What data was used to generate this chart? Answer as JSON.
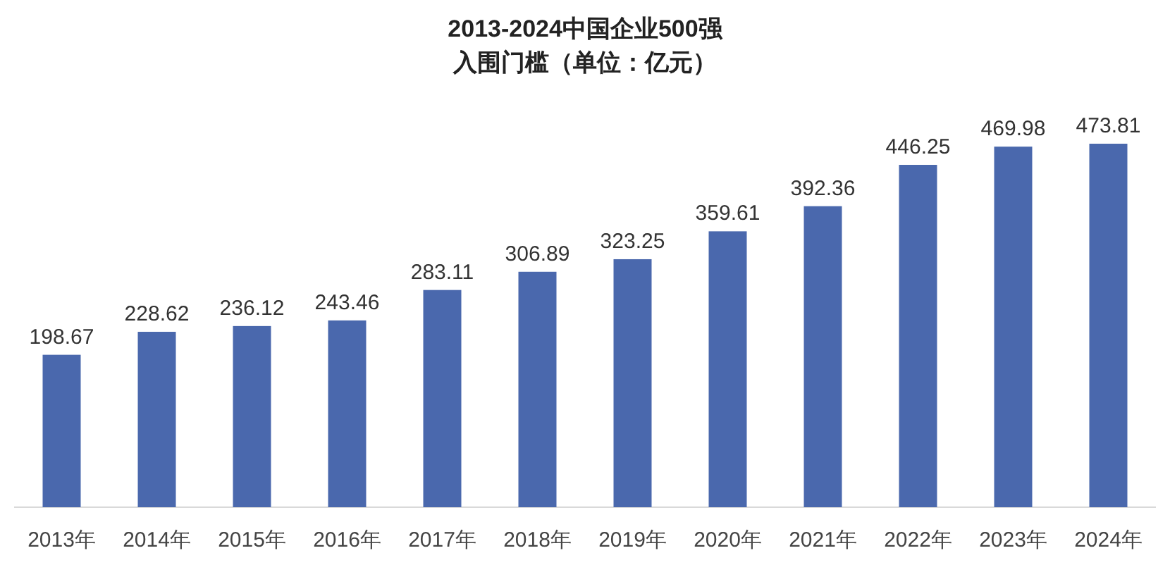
{
  "chart_data": {
    "type": "bar",
    "title": "2013-2024中国企业500强",
    "subtitle": "入围门槛（单位：亿元）",
    "categories": [
      "2013年",
      "2014年",
      "2015年",
      "2016年",
      "2017年",
      "2018年",
      "2019年",
      "2020年",
      "2021年",
      "2022年",
      "2023年",
      "2024年"
    ],
    "values": [
      198.67,
      228.62,
      236.12,
      243.46,
      283.11,
      306.89,
      323.25,
      359.61,
      392.36,
      446.25,
      469.98,
      473.81
    ],
    "color": "#4a68ad",
    "data_labels": true
  }
}
